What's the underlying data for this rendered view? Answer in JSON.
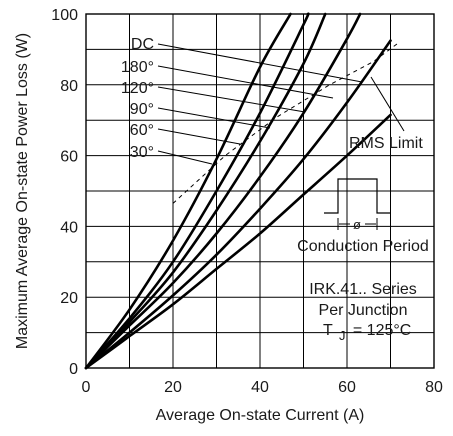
{
  "chart_data": {
    "type": "line",
    "title": "",
    "xlabel": "Average On-state Current (A)",
    "ylabel": "Maximum Average On-state Power Loss (W)",
    "xlim": [
      0,
      80
    ],
    "ylim": [
      0,
      100
    ],
    "x_ticks": [
      0,
      20,
      40,
      60,
      80
    ],
    "y_ticks": [
      0,
      20,
      40,
      60,
      80,
      100
    ],
    "grid": true,
    "series": [
      {
        "name": "DC",
        "points": [
          [
            0,
            0
          ],
          [
            10,
            16.5
          ],
          [
            20,
            36
          ],
          [
            30,
            59
          ],
          [
            40,
            85
          ],
          [
            47,
            100
          ]
        ]
      },
      {
        "name": "180°",
        "points": [
          [
            0,
            0
          ],
          [
            10,
            14
          ],
          [
            20,
            30
          ],
          [
            30,
            50
          ],
          [
            40,
            72
          ],
          [
            50,
            97
          ],
          [
            51,
            100
          ]
        ]
      },
      {
        "name": "120°",
        "points": [
          [
            0,
            0
          ],
          [
            10,
            13
          ],
          [
            20,
            27
          ],
          [
            30,
            44.5
          ],
          [
            40,
            64
          ],
          [
            50,
            86
          ],
          [
            55,
            100
          ]
        ]
      },
      {
        "name": "90°",
        "points": [
          [
            0,
            0
          ],
          [
            10,
            12
          ],
          [
            20,
            24
          ],
          [
            30,
            38
          ],
          [
            40,
            54
          ],
          [
            50,
            72
          ],
          [
            60,
            93
          ],
          [
            63,
            100
          ]
        ]
      },
      {
        "name": "60°",
        "points": [
          [
            0,
            0
          ],
          [
            10,
            10
          ],
          [
            20,
            20.5
          ],
          [
            30,
            32
          ],
          [
            40,
            45
          ],
          [
            50,
            59
          ],
          [
            60,
            75
          ],
          [
            70,
            92.5
          ]
        ]
      },
      {
        "name": "30°",
        "points": [
          [
            0,
            0
          ],
          [
            10,
            9
          ],
          [
            20,
            18
          ],
          [
            30,
            28
          ],
          [
            40,
            38
          ],
          [
            50,
            49
          ],
          [
            60,
            60
          ],
          [
            70,
            71.5
          ]
        ]
      }
    ],
    "rms_limit": [
      [
        20,
        46.5
      ],
      [
        32,
        60
      ],
      [
        44,
        71
      ],
      [
        56,
        80
      ],
      [
        66,
        86.5
      ],
      [
        72,
        92
      ]
    ],
    "annotations": {
      "rms_label": "RMS Limit",
      "conduction_label": "Conduction Period",
      "phi_symbol": "ø",
      "device": "IRK.41.. Series",
      "junction": "Per Junction",
      "tj_prefix": "T",
      "tj_sub": "J",
      "tj_value": "= 125°C"
    }
  }
}
